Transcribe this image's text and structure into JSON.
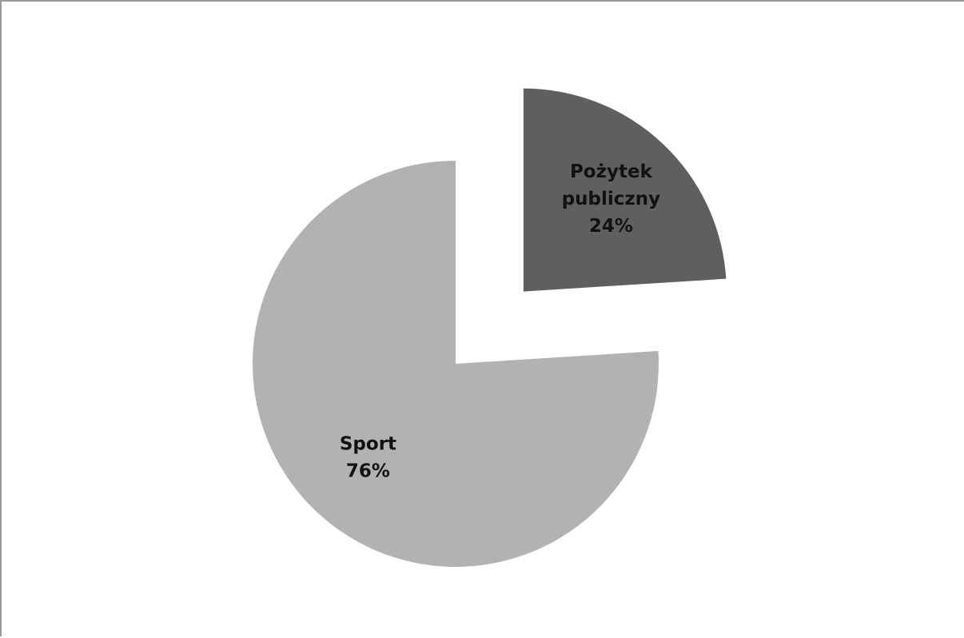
{
  "chart_data": {
    "type": "pie",
    "title": "",
    "slices": [
      {
        "label_lines": [
          "Pożytek",
          "publiczny",
          "24%"
        ],
        "name": "Pożytek publiczny",
        "value": 24,
        "percent_label": "24%",
        "color": "#5f5f5f",
        "exploded": true
      },
      {
        "label_lines": [
          "Sport",
          "76%"
        ],
        "name": "Sport",
        "value": 76,
        "percent_label": "76%",
        "color": "#b2b2b2",
        "exploded": false
      }
    ],
    "legend": "none",
    "start_angle": "12 o'clock",
    "direction": "clockwise"
  }
}
